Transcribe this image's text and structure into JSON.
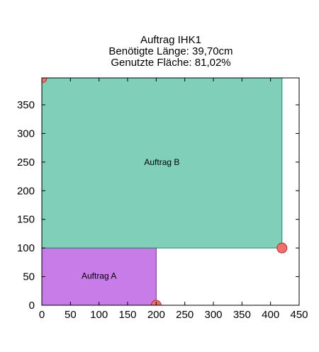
{
  "chart_data": {
    "type": "rectangle-layout",
    "title_lines": [
      "Auftrag IHK1",
      "Benötigte Länge: 39,70cm",
      "Genutzte Fläche: 81,02%"
    ],
    "xlim": [
      0,
      450
    ],
    "ylim": [
      0,
      397
    ],
    "xticks": [
      "0",
      "50",
      "100",
      "150",
      "200",
      "250",
      "300",
      "350",
      "400",
      "450"
    ],
    "yticks": [
      "0",
      "50",
      "100",
      "150",
      "200",
      "250",
      "300",
      "350"
    ],
    "grid": false,
    "rectangles": [
      {
        "name": "Auftrag A",
        "x": 0,
        "y": 0,
        "width": 200,
        "height": 100,
        "color": "#c77ce8",
        "edge": "#7a2fa3"
      },
      {
        "name": "Auftrag B",
        "x": 0,
        "y": 100,
        "width": 420,
        "height": 297,
        "color": "#80cfb8",
        "edge": "#1b8a6b"
      }
    ],
    "points": [
      {
        "x": 0,
        "y": 397
      },
      {
        "x": 420,
        "y": 100
      },
      {
        "x": 200,
        "y": 0
      }
    ],
    "point_color": "#f07070"
  }
}
